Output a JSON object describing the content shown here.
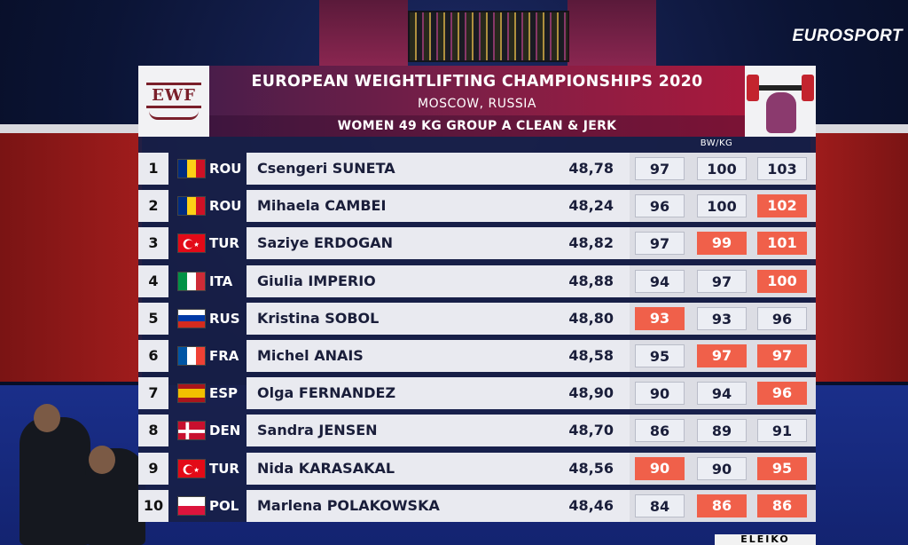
{
  "broadcaster": "EUROSPORT",
  "header": {
    "logo": "EWF",
    "title": "EUROPEAN WEIGHTLIFTING CHAMPIONSHIPS 2020",
    "location": "MOSCOW, RUSSIA",
    "event": "WOMEN 49 KG GROUP A CLEAN & JERK"
  },
  "table": {
    "bw_label": "BW/KG",
    "rows": [
      {
        "rank": "1",
        "country": "ROU",
        "flag": "flag-romania",
        "name": "Csengeri SUNETA",
        "bw": "48,78",
        "attempts": [
          {
            "v": "97",
            "s": "good"
          },
          {
            "v": "100",
            "s": "good"
          },
          {
            "v": "103",
            "s": "good"
          }
        ]
      },
      {
        "rank": "2",
        "country": "ROU",
        "flag": "flag-romania",
        "name": "Mihaela CAMBEI",
        "bw": "48,24",
        "attempts": [
          {
            "v": "96",
            "s": "good"
          },
          {
            "v": "100",
            "s": "good"
          },
          {
            "v": "102",
            "s": "no-lift"
          }
        ]
      },
      {
        "rank": "3",
        "country": "TUR",
        "flag": "flag-turkey",
        "name": "Saziye ERDOGAN",
        "bw": "48,82",
        "attempts": [
          {
            "v": "97",
            "s": "good"
          },
          {
            "v": "99",
            "s": "no-lift"
          },
          {
            "v": "101",
            "s": "no-lift"
          }
        ]
      },
      {
        "rank": "4",
        "country": "ITA",
        "flag": "flag-italy",
        "name": "Giulia IMPERIO",
        "bw": "48,88",
        "attempts": [
          {
            "v": "94",
            "s": "good"
          },
          {
            "v": "97",
            "s": "good"
          },
          {
            "v": "100",
            "s": "no-lift"
          }
        ]
      },
      {
        "rank": "5",
        "country": "RUS",
        "flag": "flag-russia",
        "name": "Kristina SOBOL",
        "bw": "48,80",
        "attempts": [
          {
            "v": "93",
            "s": "no-lift"
          },
          {
            "v": "93",
            "s": "good"
          },
          {
            "v": "96",
            "s": "good"
          }
        ]
      },
      {
        "rank": "6",
        "country": "FRA",
        "flag": "flag-france",
        "name": "Michel ANAIS",
        "bw": "48,58",
        "attempts": [
          {
            "v": "95",
            "s": "good"
          },
          {
            "v": "97",
            "s": "no-lift"
          },
          {
            "v": "97",
            "s": "no-lift"
          }
        ]
      },
      {
        "rank": "7",
        "country": "ESP",
        "flag": "flag-spain",
        "name": "Olga FERNANDEZ",
        "bw": "48,90",
        "attempts": [
          {
            "v": "90",
            "s": "good"
          },
          {
            "v": "94",
            "s": "good"
          },
          {
            "v": "96",
            "s": "no-lift"
          }
        ]
      },
      {
        "rank": "8",
        "country": "DEN",
        "flag": "flag-denmark",
        "name": "Sandra JENSEN",
        "bw": "48,70",
        "attempts": [
          {
            "v": "86",
            "s": "good"
          },
          {
            "v": "89",
            "s": "good"
          },
          {
            "v": "91",
            "s": "good"
          }
        ]
      },
      {
        "rank": "9",
        "country": "TUR",
        "flag": "flag-turkey",
        "name": "Nida KARASAKAL",
        "bw": "48,56",
        "attempts": [
          {
            "v": "90",
            "s": "no-lift"
          },
          {
            "v": "90",
            "s": "good"
          },
          {
            "v": "95",
            "s": "no-lift"
          }
        ]
      },
      {
        "rank": "10",
        "country": "POL",
        "flag": "flag-poland",
        "name": "Marlena POLAKOWSKA",
        "bw": "48,46",
        "attempts": [
          {
            "v": "84",
            "s": "good"
          },
          {
            "v": "86",
            "s": "no-lift"
          },
          {
            "v": "86",
            "s": "no-lift"
          }
        ]
      }
    ]
  },
  "sponsor": "ELEIKO",
  "colors": {
    "good": "#eceef4",
    "no_lift": "#f0604a",
    "header_start": "#4a1d4a",
    "header_end": "#a8193c"
  }
}
